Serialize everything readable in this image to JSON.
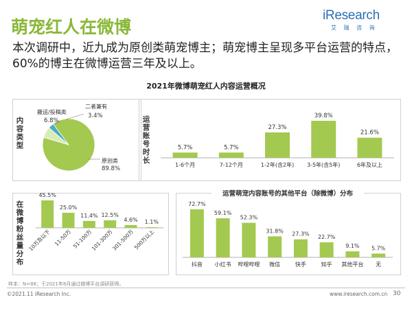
{
  "page": {
    "title": "萌宠红人在微博",
    "subtitle": "本次调研中，近九成为原创类萌宠博主；萌宠博主呈现多平台运营的特点，60%的博主在微博运营三年及以上。",
    "logo_text": "iResearch",
    "logo_sub": "艾 瑞 咨 询",
    "section_title": "2021年微博萌宠红人内容运营概况",
    "footnote": "样本：N=88；于2021年8月通过微博平台调研获得。",
    "copyright": "©2021.11 iResearch Inc.",
    "site": "www.iresearch.com.cn",
    "page_number": "30"
  },
  "colors": {
    "accent": "#8ab838",
    "bar": "#a3c950",
    "pie_main": "#a3c950",
    "pie_blue": "#4bacc6",
    "pie_light": "#d9ecb5",
    "title": "#8ab838"
  },
  "chart_data": [
    {
      "id": "content-type",
      "type": "pie",
      "ylabel": "内容类型",
      "slices": [
        {
          "label": "原创类",
          "value": 89.8,
          "value_label": "89.8%"
        },
        {
          "label": "搬运/投稿类",
          "value": 6.8,
          "value_label": "6.8%"
        },
        {
          "label": "二者兼有",
          "value": 3.4,
          "value_label": "3.4%"
        }
      ]
    },
    {
      "id": "account-age",
      "type": "bar",
      "ylabel": "运营账号时长",
      "categories": [
        "1-6个月",
        "7-12个月",
        "1-2年(含2年)",
        "3-5年(含5年)",
        "6年及以上"
      ],
      "values": [
        5.7,
        5.7,
        27.3,
        39.8,
        21.6
      ],
      "value_labels": [
        "5.7%",
        "5.7%",
        "27.3%",
        "39.8%",
        "21.6%"
      ]
    },
    {
      "id": "followers",
      "type": "bar",
      "ylabel": "在微博粉丝量分布",
      "categories": [
        "10万及以下",
        "11-50万",
        "51-100万",
        "101-300万",
        "301-500万",
        "500万以上"
      ],
      "values": [
        45.5,
        25.0,
        11.4,
        12.5,
        4.6,
        1.1
      ],
      "value_labels": [
        "45.5%",
        "25.0%",
        "11.4%",
        "12.5%",
        "4.6%",
        "1.1%"
      ]
    },
    {
      "id": "other-platforms",
      "type": "bar",
      "title": "运营萌宠内容账号的其他平台（除微博）分布",
      "categories": [
        "抖音",
        "小红书",
        "哔哩哔哩",
        "微信",
        "快手",
        "知乎",
        "其他平台",
        "无"
      ],
      "values": [
        72.7,
        59.1,
        52.3,
        31.8,
        27.3,
        22.7,
        9.1,
        5.7
      ],
      "value_labels": [
        "72.7%",
        "59.1%",
        "52.3%",
        "31.8%",
        "27.3%",
        "22.7%",
        "9.1%",
        "5.7%"
      ]
    }
  ]
}
